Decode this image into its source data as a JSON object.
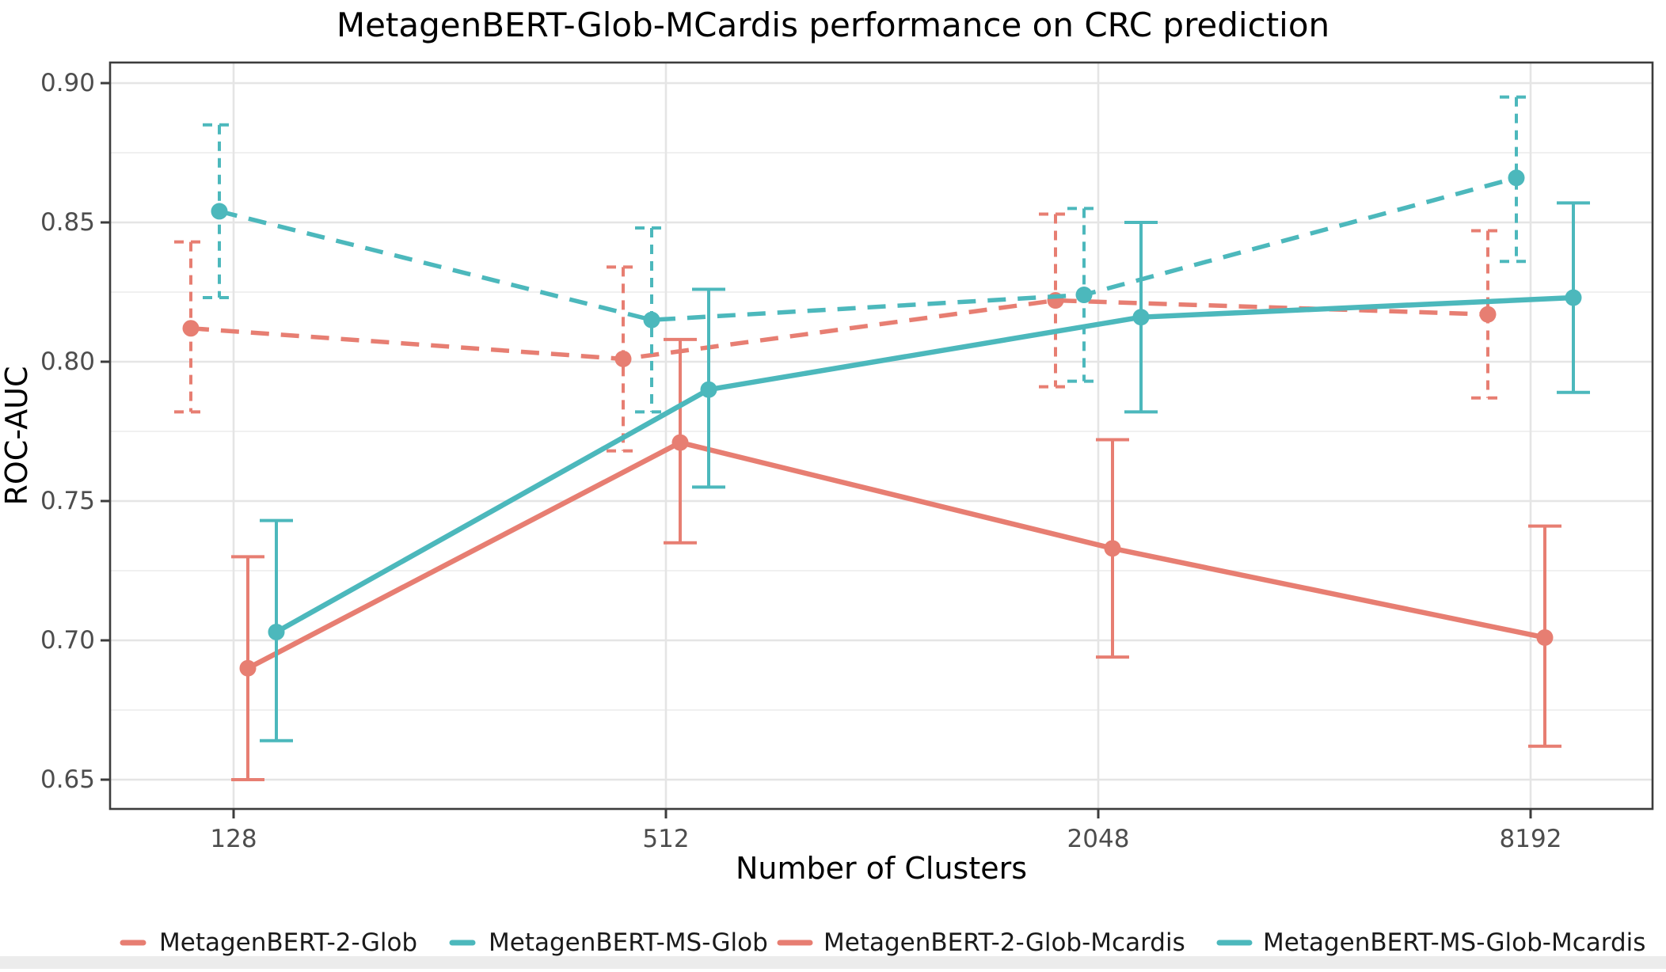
{
  "figure": {
    "background_color": "#FFFFFF",
    "bottom_strip_color": "#ECECEC"
  },
  "chart_data": {
    "type": "line",
    "title": "MetagenBERT-Glob-MCardis performance on CRC prediction",
    "xlabel": "Number of Clusters",
    "ylabel": "ROC-AUC",
    "x_categories": [
      "128",
      "512",
      "2048",
      "8192"
    ],
    "x_scale": "categorical (log-spaced cluster counts)",
    "ylim": [
      0.64,
      0.9085
    ],
    "y_major_ticks": [
      0.9,
      0.85,
      0.8,
      0.75,
      0.7,
      0.65
    ],
    "y_minor_ticks": [
      0.875,
      0.825,
      0.775,
      0.725,
      0.675
    ],
    "grid": {
      "horizontal_major": true,
      "horizontal_minor": true,
      "vertical_major": true
    },
    "error_bars": true,
    "legend_position": "bottom",
    "series": [
      {
        "name": "MetagenBERT-2-Glob",
        "color": "#E77E72",
        "line_style": "dashed",
        "values": [
          0.812,
          0.801,
          0.822,
          0.817
        ],
        "err_low": [
          0.782,
          0.768,
          0.791,
          0.787
        ],
        "err_high": [
          0.843,
          0.834,
          0.853,
          0.847
        ]
      },
      {
        "name": "MetagenBERT-MS-Glob",
        "color": "#4CB8BC",
        "line_style": "dashed",
        "values": [
          0.854,
          0.815,
          0.824,
          0.866
        ],
        "err_low": [
          0.823,
          0.782,
          0.793,
          0.836
        ],
        "err_high": [
          0.885,
          0.848,
          0.855,
          0.895
        ]
      },
      {
        "name": "MetagenBERT-2-Glob-Mcardis",
        "color": "#E77E72",
        "line_style": "solid",
        "values": [
          0.69,
          0.771,
          0.733,
          0.701
        ],
        "err_low": [
          0.65,
          0.735,
          0.694,
          0.662
        ],
        "err_high": [
          0.73,
          0.808,
          0.772,
          0.741
        ]
      },
      {
        "name": "MetagenBERT-MS-Glob-Mcardis",
        "color": "#4CB8BC",
        "line_style": "solid",
        "values": [
          0.703,
          0.79,
          0.816,
          0.823
        ],
        "err_low": [
          0.664,
          0.755,
          0.782,
          0.789
        ],
        "err_high": [
          0.743,
          0.826,
          0.85,
          0.857
        ]
      }
    ],
    "style_colors": {
      "tick_label": "#4D4D4D",
      "axis_title": "#000000",
      "title": "#000000",
      "legend_text": "#1A1A1A",
      "panel_border": "#3C3C3C",
      "grid_major": "#E5E5E5",
      "grid_minor": "#ECECEC"
    }
  }
}
